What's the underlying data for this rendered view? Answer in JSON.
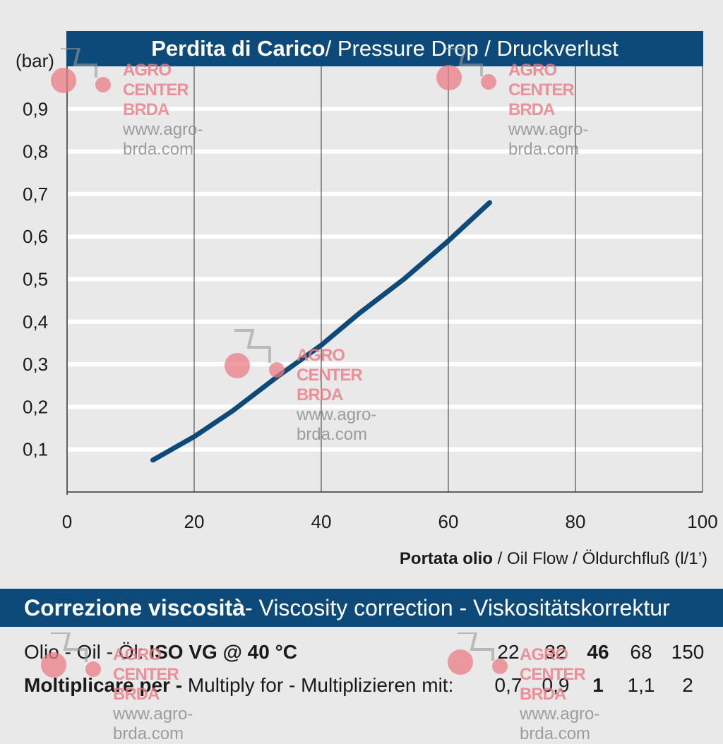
{
  "chart_data": {
    "type": "line",
    "title_bold": "Perdita di Carico",
    "title_rest": " / Pressure Drop / Druckverlust",
    "ylabel": "(bar)",
    "xlabel_bold": "Portata olio",
    "xlabel_rest": " / Oil Flow  / Öldurchfluß    (l/1’)",
    "xlim": [
      0,
      100
    ],
    "ylim": [
      0,
      1.0
    ],
    "x_ticks": [
      "0",
      "20",
      "40",
      "60",
      "80",
      "100"
    ],
    "x_tick_values": [
      0,
      20,
      40,
      60,
      80,
      100
    ],
    "y_ticks": [
      "0,1",
      "0,2",
      "0,3",
      "0,4",
      "0,5",
      "0,6",
      "0,7",
      "0,8",
      "0,9"
    ],
    "y_tick_values": [
      0.1,
      0.2,
      0.3,
      0.4,
      0.5,
      0.6,
      0.7,
      0.8,
      0.9
    ],
    "grid": true,
    "color": "#0d4a79",
    "series": [
      {
        "x": [
          13.5,
          20,
          26,
          33,
          40,
          46,
          53,
          60,
          66.5
        ],
        "y": [
          0.075,
          0.13,
          0.19,
          0.27,
          0.345,
          0.42,
          0.5,
          0.59,
          0.68
        ]
      }
    ]
  },
  "viscosity": {
    "title_bold": "Correzione viscosità",
    "title_rest": "  -  Viscosity correction  -  Viskositätskorrektur",
    "row1_prefix": "Olio - Oil - Öl: ",
    "row1_bold": "ISO VG @ 40 °C",
    "row2_bold": "Moltiplicare per - ",
    "row2_rest": "Multiply for - Multiplizieren mit:",
    "oil_grades": [
      "22",
      "32",
      "46",
      "68",
      "150"
    ],
    "multipliers": [
      "0,7",
      "0,9",
      "1",
      "1,1",
      "2"
    ]
  },
  "watermark": {
    "brand": "AGRO CENTER BRDA",
    "url": "www.agro-brda.com"
  }
}
